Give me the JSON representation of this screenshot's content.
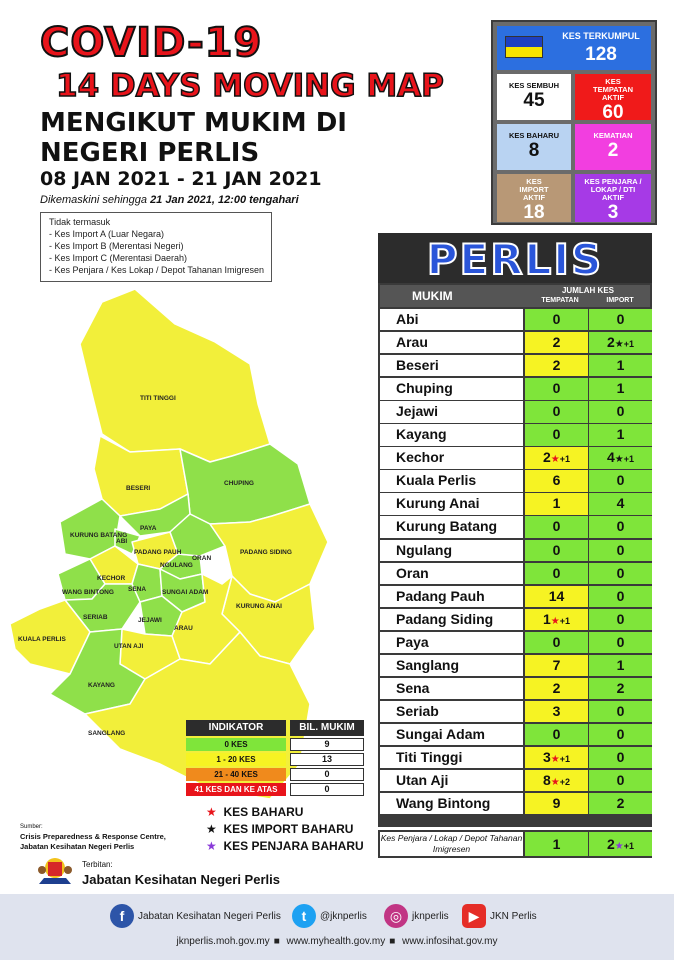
{
  "title": {
    "line1": "COVID-19",
    "line2": "14 DAYS MOVING MAP",
    "line3": "MENGIKUT MUKIM DI",
    "line4": "NEGERI PERLIS",
    "dates": "08 JAN 2021 - 21 JAN 2021",
    "updated_prefix": "Dikemaskini sehingga ",
    "updated_value": "21 Jan 2021, 12:00 tengahari"
  },
  "exclusions": [
    "Tidak termasuk",
    "- Kes Import A (Luar Negara)",
    "- Kes Import B (Merentasi Negeri)",
    "- Kes Import C (Merentasi Daerah)",
    "- Kes Penjara / Kes Lokap / Depot Tahanan Imigresen"
  ],
  "stats": {
    "kes_terkumpul": {
      "label": "KES TERKUMPUL",
      "value": "128",
      "color": "#2c6fe0"
    },
    "kes_sembuh": {
      "label": "KES SEMBUH",
      "value": "45",
      "color": "#ffffff"
    },
    "kes_tempatan": {
      "label": "KES TEMPATAN AKTIF",
      "value": "60",
      "color": "#f01a1a"
    },
    "kes_baharu": {
      "label": "KES BAHARU",
      "value": "8",
      "color": "#b9d3f2"
    },
    "kematian": {
      "label": "KEMATIAN",
      "value": "2",
      "color": "#f23ee0"
    },
    "kes_import": {
      "label": "KES IMPORT AKTIF",
      "value": "18",
      "color": "#b89876"
    },
    "kes_penjara": {
      "label": "KES PENJARA / LOKAP / DTI AKTIF",
      "value": "3",
      "color": "#a63ae6"
    }
  },
  "table": {
    "banner": "PERLIS",
    "col_mukim": "MUKIM",
    "col_jumlah": "JUMLAH KES",
    "col_tempatan": "TEMPATAN",
    "col_import": "IMPORT",
    "rows": [
      {
        "name": "Abi",
        "tempatan": "0",
        "import": "0",
        "t_col": "green",
        "i_col": "green"
      },
      {
        "name": "Arau",
        "tempatan": "2",
        "import": "2",
        "t_col": "yellow",
        "i_col": "green",
        "i_star": "k",
        "i_plus": "+1"
      },
      {
        "name": "Beseri",
        "tempatan": "2",
        "import": "1",
        "t_col": "yellow",
        "i_col": "green"
      },
      {
        "name": "Chuping",
        "tempatan": "0",
        "import": "1",
        "t_col": "green",
        "i_col": "green"
      },
      {
        "name": "Jejawi",
        "tempatan": "0",
        "import": "0",
        "t_col": "green",
        "i_col": "green"
      },
      {
        "name": "Kayang",
        "tempatan": "0",
        "import": "1",
        "t_col": "green",
        "i_col": "green"
      },
      {
        "name": "Kechor",
        "tempatan": "2",
        "import": "4",
        "t_col": "yellow",
        "i_col": "green",
        "t_star": "r",
        "t_plus": "+1",
        "i_star": "k",
        "i_plus": "+1"
      },
      {
        "name": "Kuala Perlis",
        "tempatan": "6",
        "import": "0",
        "t_col": "yellow",
        "i_col": "green"
      },
      {
        "name": "Kurung Anai",
        "tempatan": "1",
        "import": "4",
        "t_col": "yellow",
        "i_col": "green"
      },
      {
        "name": "Kurung Batang",
        "tempatan": "0",
        "import": "0",
        "t_col": "green",
        "i_col": "green"
      },
      {
        "name": "Ngulang",
        "tempatan": "0",
        "import": "0",
        "t_col": "green",
        "i_col": "green"
      },
      {
        "name": "Oran",
        "tempatan": "0",
        "import": "0",
        "t_col": "green",
        "i_col": "green"
      },
      {
        "name": "Padang Pauh",
        "tempatan": "14",
        "import": "0",
        "t_col": "yellow",
        "i_col": "green"
      },
      {
        "name": "Padang Siding",
        "tempatan": "1",
        "import": "0",
        "t_col": "yellow",
        "i_col": "green",
        "t_star": "r",
        "t_plus": "+1"
      },
      {
        "name": "Paya",
        "tempatan": "0",
        "import": "0",
        "t_col": "green",
        "i_col": "green"
      },
      {
        "name": "Sanglang",
        "tempatan": "7",
        "import": "1",
        "t_col": "yellow",
        "i_col": "green"
      },
      {
        "name": "Sena",
        "tempatan": "2",
        "import": "2",
        "t_col": "yellow",
        "i_col": "green"
      },
      {
        "name": "Seriab",
        "tempatan": "3",
        "import": "0",
        "t_col": "yellow",
        "i_col": "green"
      },
      {
        "name": "Sungai Adam",
        "tempatan": "0",
        "import": "0",
        "t_col": "green",
        "i_col": "green"
      },
      {
        "name": "Titi Tinggi",
        "tempatan": "3",
        "import": "0",
        "t_col": "yellow",
        "i_col": "green",
        "t_star": "r",
        "t_plus": "+1"
      },
      {
        "name": "Utan Aji",
        "tempatan": "8",
        "import": "0",
        "t_col": "yellow",
        "i_col": "green",
        "t_star": "r",
        "t_plus": "+2"
      },
      {
        "name": "Wang Bintong",
        "tempatan": "9",
        "import": "2",
        "t_col": "yellow",
        "i_col": "green"
      }
    ],
    "penjara": {
      "label": "Kes Penjara / Lokap / Depot Tahanan Imigresen",
      "tempatan": "1",
      "import": "2",
      "i_plus": "+1"
    }
  },
  "indicator": {
    "h1": "INDIKATOR",
    "h2": "BIL. MUKIM",
    "rows": [
      {
        "label": "0 KES",
        "value": "9",
        "color": "#7fe53a",
        "text": "#111111"
      },
      {
        "label": "1 - 20 KES",
        "value": "13",
        "color": "#f6f323",
        "text": "#111111"
      },
      {
        "label": "21 - 40 KES",
        "value": "0",
        "color": "#f08a1c",
        "text": "#111111"
      },
      {
        "label": "41 KES DAN KE ATAS",
        "value": "0",
        "color": "#e8141b",
        "text": "#ffffff"
      }
    ]
  },
  "legend": {
    "baharu": "KES BAHARU",
    "import_baharu": "KES IMPORT BAHARU",
    "penjara_baharu": "KES PENJARA BAHARU"
  },
  "source": {
    "label": "Sumber:",
    "line1": "Crisis Preparedness & Response Centre,",
    "line2": "Jabatan Kesihatan Negeri Perlis"
  },
  "publisher": {
    "label": "Terbitan:",
    "name": "Jabatan Kesihatan Negeri Perlis"
  },
  "footer": {
    "facebook": "Jabatan Kesihatan Negeri Perlis",
    "twitter": "@jknperlis",
    "instagram": "jknperlis",
    "youtube": "JKN Perlis",
    "url1": "jknperlis.moh.gov.my",
    "url2": "www.myhealth.gov.my",
    "url3": "www.infosihat.gov.my"
  },
  "map_labels": {
    "titi_tinggi": "TITI TINGGI",
    "beseri": "BESERI",
    "chuping": "CHUPING",
    "paya": "PAYA",
    "kurung_batang": "KURUNG BATANG",
    "abi": "ABI",
    "padang_pauh": "PADANG PAUH",
    "ngulang": "NGULANG",
    "oran": "ORAN",
    "padang_siding": "PADANG SIDING",
    "kechor": "KECHOR",
    "wang_bintong": "WANG BINTONG",
    "sena": "SENA",
    "sungai_adam": "SUNGAI ADAM",
    "kurung_anai": "KURUNG ANAI",
    "seriab": "SERIAB",
    "jejawi": "JEJAWI",
    "arau": "ARAU",
    "kuala_perlis": "KUALA PERLIS",
    "utan_aji": "UTAN AJI",
    "kayang": "KAYANG",
    "sanglang": "SANGLANG"
  }
}
